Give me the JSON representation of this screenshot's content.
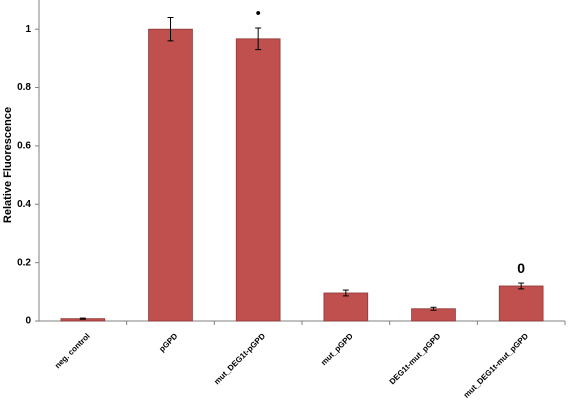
{
  "chart_data": {
    "type": "bar",
    "y_label": "Relative Fluorescence",
    "categories": [
      "neg. control",
      "pGPD",
      "mut_DEG1t-pGPD",
      "mut_pGPD",
      "DEG1t-mut_pGPD",
      "mut_DEG1t-mut_pGPD"
    ],
    "values": [
      0.008,
      1.0,
      0.967,
      0.096,
      0.042,
      0.12
    ],
    "errors": [
      0.002,
      0.04,
      0.037,
      0.01,
      0.005,
      0.01
    ],
    "annotations": [
      null,
      null,
      "•",
      null,
      null,
      "0"
    ],
    "color": "#c0504d",
    "ylim": [
      0,
      1.1
    ],
    "yticks": [
      0,
      0.2,
      0.4,
      0.6,
      0.8,
      1
    ]
  }
}
